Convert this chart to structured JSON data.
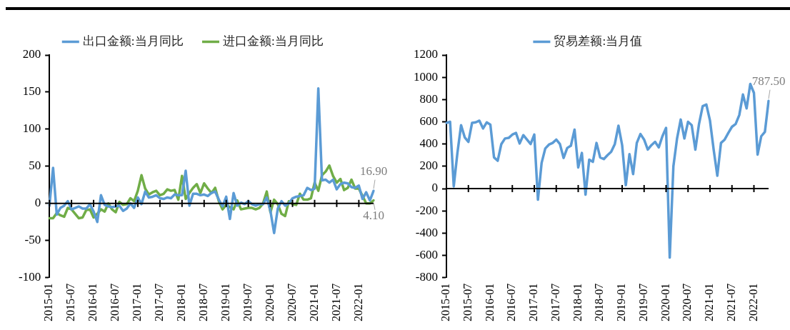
{
  "chart_data": [
    {
      "type": "line",
      "legend": "top",
      "ylim": [
        -100,
        200
      ],
      "yticks": [
        -100,
        -50,
        0,
        50,
        100,
        150,
        200
      ],
      "categories": [
        "2015-01",
        null,
        null,
        null,
        null,
        null,
        "2015-07",
        null,
        null,
        null,
        null,
        null,
        "2016-01",
        null,
        null,
        null,
        null,
        null,
        "2016-07",
        null,
        null,
        null,
        null,
        null,
        "2017-01",
        null,
        null,
        null,
        null,
        null,
        "2017-07",
        null,
        null,
        null,
        null,
        null,
        "2018-01",
        null,
        null,
        null,
        null,
        null,
        "2018-07",
        null,
        null,
        null,
        null,
        null,
        "2019-01",
        null,
        null,
        null,
        null,
        null,
        "2019-07",
        null,
        null,
        null,
        null,
        null,
        "2020-01",
        null,
        null,
        null,
        null,
        null,
        "2020-07",
        null,
        null,
        null,
        null,
        null,
        "2021-01",
        null,
        null,
        null,
        null,
        null,
        "2021-07",
        null,
        null,
        null,
        null,
        null,
        "2022-01",
        null,
        null,
        null,
        null
      ],
      "series": [
        {
          "name": "出口金额:当月同比",
          "color": "#5b9bd5",
          "values": [
            -3,
            48,
            -15,
            -6,
            -3,
            3,
            -8,
            -6,
            -4,
            -7,
            -7,
            -1,
            -11,
            -25,
            11,
            -2,
            -4,
            -5,
            -4,
            -3,
            -10,
            -7,
            0,
            -6,
            8,
            -1,
            16,
            8,
            9,
            11,
            7,
            6,
            8,
            7,
            12,
            11,
            11,
            44,
            -3,
            13,
            13,
            11,
            12,
            10,
            14,
            16,
            5,
            -4,
            9,
            -21,
            14,
            -3,
            1,
            -1,
            3,
            -1,
            -3,
            -1,
            -1,
            8,
            -10,
            -40,
            -7,
            3,
            -3,
            0,
            7,
            9,
            10,
            11,
            21,
            18,
            20,
            155,
            31,
            32,
            28,
            32,
            19,
            26,
            28,
            27,
            22,
            21,
            24,
            6,
            15,
            4,
            16.9
          ],
          "value_labels": [
            null,
            null,
            null,
            null,
            null,
            null,
            null,
            null,
            null,
            null,
            null,
            null,
            null,
            null,
            null,
            null,
            null,
            null,
            null,
            null,
            null,
            null,
            null,
            null,
            null,
            null,
            null,
            null,
            null,
            null,
            null,
            null,
            null,
            null,
            null,
            null,
            null,
            null,
            null,
            null,
            null,
            null,
            null,
            null,
            null,
            null,
            null,
            null,
            null,
            null,
            null,
            null,
            null,
            null,
            null,
            null,
            null,
            null,
            null,
            null,
            null,
            null,
            null,
            null,
            null,
            null,
            null,
            null,
            null,
            null,
            null,
            null,
            null,
            null,
            null,
            null,
            null,
            null,
            null,
            null,
            null,
            null,
            null,
            null,
            null,
            null,
            null,
            null,
            "16.90"
          ]
        },
        {
          "name": "进口金额:当月同比",
          "color": "#70ad47",
          "values": [
            -20,
            -20,
            -13,
            -16,
            -18,
            -6,
            -8,
            -14,
            -20,
            -19,
            -9,
            -8,
            -19,
            -14,
            -8,
            -11,
            0,
            -8,
            -12,
            2,
            -2,
            -1,
            7,
            3,
            17,
            38,
            20,
            12,
            15,
            17,
            11,
            13,
            19,
            17,
            18,
            5,
            37,
            6,
            14,
            21,
            26,
            14,
            27,
            20,
            14,
            21,
            3,
            -8,
            -2,
            -5,
            -8,
            4,
            -8,
            -7,
            -6,
            -6,
            -8,
            -6,
            0,
            16,
            -12,
            5,
            -1,
            -14,
            -17,
            3,
            -1,
            -2,
            13,
            5,
            5,
            7,
            28,
            17,
            38,
            43,
            51,
            37,
            28,
            33,
            18,
            21,
            32,
            20,
            20,
            10,
            0,
            0,
            4.1
          ],
          "value_labels": [
            null,
            null,
            null,
            null,
            null,
            null,
            null,
            null,
            null,
            null,
            null,
            null,
            null,
            null,
            null,
            null,
            null,
            null,
            null,
            null,
            null,
            null,
            null,
            null,
            null,
            null,
            null,
            null,
            null,
            null,
            null,
            null,
            null,
            null,
            null,
            null,
            null,
            null,
            null,
            null,
            null,
            null,
            null,
            null,
            null,
            null,
            null,
            null,
            null,
            null,
            null,
            null,
            null,
            null,
            null,
            null,
            null,
            null,
            null,
            null,
            null,
            null,
            null,
            null,
            null,
            null,
            null,
            null,
            null,
            null,
            null,
            null,
            null,
            null,
            null,
            null,
            null,
            null,
            null,
            null,
            null,
            null,
            null,
            null,
            null,
            null,
            null,
            null,
            "4.10"
          ]
        }
      ]
    },
    {
      "type": "line",
      "legend": "top",
      "ylim": [
        -800,
        1200
      ],
      "yticks": [
        -800,
        -600,
        -400,
        -200,
        0,
        200,
        400,
        600,
        800,
        1000,
        1200
      ],
      "categories": [
        "2015-01",
        null,
        null,
        null,
        null,
        null,
        "2015-07",
        null,
        null,
        null,
        null,
        null,
        "2016-01",
        null,
        null,
        null,
        null,
        null,
        "2016-07",
        null,
        null,
        null,
        null,
        null,
        "2017-01",
        null,
        null,
        null,
        null,
        null,
        "2017-07",
        null,
        null,
        null,
        null,
        null,
        "2018-01",
        null,
        null,
        null,
        null,
        null,
        "2018-07",
        null,
        null,
        null,
        null,
        null,
        "2019-01",
        null,
        null,
        null,
        null,
        null,
        "2019-07",
        null,
        null,
        null,
        null,
        null,
        "2020-01",
        null,
        null,
        null,
        null,
        null,
        "2020-07",
        null,
        null,
        null,
        null,
        null,
        "2021-01",
        null,
        null,
        null,
        null,
        null,
        "2021-07",
        null,
        null,
        null,
        null,
        null,
        "2022-01",
        null,
        null,
        null,
        null
      ],
      "series": [
        {
          "name": "贸易差额:当月值",
          "color": "#5b9bd5",
          "values": [
            590,
            600,
            20,
            320,
            570,
            460,
            420,
            590,
            595,
            610,
            540,
            595,
            575,
            280,
            250,
            400,
            450,
            455,
            485,
            500,
            405,
            480,
            440,
            400,
            485,
            -100,
            230,
            360,
            395,
            410,
            440,
            400,
            275,
            365,
            385,
            530,
            190,
            320,
            -55,
            260,
            240,
            410,
            280,
            265,
            300,
            330,
            400,
            565,
            390,
            30,
            310,
            130,
            410,
            490,
            440,
            350,
            390,
            420,
            370,
            470,
            545,
            -620,
            200,
            450,
            620,
            450,
            600,
            570,
            350,
            580,
            740,
            755,
            610,
            350,
            115,
            410,
            440,
            500,
            555,
            580,
            660,
            845,
            720,
            940,
            860,
            305,
            470,
            510,
            787.5
          ],
          "value_labels": [
            null,
            null,
            null,
            null,
            null,
            null,
            null,
            null,
            null,
            null,
            null,
            null,
            null,
            null,
            null,
            null,
            null,
            null,
            null,
            null,
            null,
            null,
            null,
            null,
            null,
            null,
            null,
            null,
            null,
            null,
            null,
            null,
            null,
            null,
            null,
            null,
            null,
            null,
            null,
            null,
            null,
            null,
            null,
            null,
            null,
            null,
            null,
            null,
            null,
            null,
            null,
            null,
            null,
            null,
            null,
            null,
            null,
            null,
            null,
            null,
            null,
            null,
            null,
            null,
            null,
            null,
            null,
            null,
            null,
            null,
            null,
            null,
            null,
            null,
            null,
            null,
            null,
            null,
            null,
            null,
            null,
            null,
            null,
            null,
            null,
            null,
            null,
            null,
            "787.50"
          ]
        }
      ]
    }
  ]
}
